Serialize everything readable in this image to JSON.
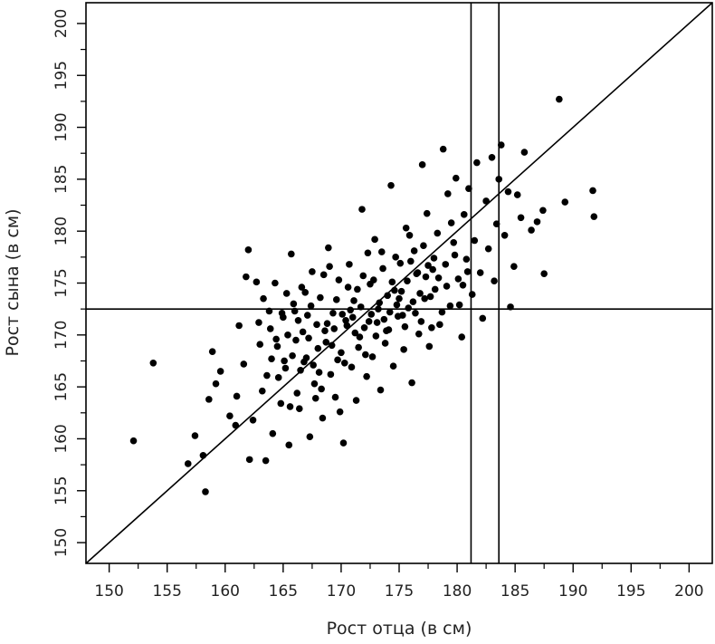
{
  "chart_data": {
    "type": "scatter",
    "xlabel": "Рост отца (в см)",
    "ylabel": "Рост сына (в см)",
    "xlim": [
      148,
      202
    ],
    "ylim": [
      148,
      202
    ],
    "x_ticks": [
      "150",
      "155",
      "160",
      "165",
      "170",
      "175",
      "180",
      "185",
      "190",
      "195",
      "200"
    ],
    "y_ticks": [
      "150",
      "155",
      "160",
      "165",
      "170",
      "175",
      "180",
      "185",
      "190",
      "195",
      "200"
    ],
    "grid": false,
    "legend": "none",
    "point_color": "#000000",
    "reference_lines": {
      "diagonal": "y = x",
      "horizontal_y": 172.5,
      "vertical_x": [
        181.2,
        183.6
      ]
    },
    "points": [
      [
        152.1,
        159.8
      ],
      [
        153.8,
        167.3
      ],
      [
        156.8,
        157.6
      ],
      [
        157.4,
        160.3
      ],
      [
        158.1,
        158.4
      ],
      [
        158.3,
        154.9
      ],
      [
        158.6,
        163.8
      ],
      [
        158.9,
        168.4
      ],
      [
        159.2,
        165.3
      ],
      [
        159.6,
        166.5
      ],
      [
        160.4,
        162.2
      ],
      [
        160.9,
        161.3
      ],
      [
        161.0,
        164.1
      ],
      [
        161.2,
        170.9
      ],
      [
        161.6,
        167.2
      ],
      [
        161.8,
        175.6
      ],
      [
        162.0,
        178.2
      ],
      [
        162.1,
        158.0
      ],
      [
        162.4,
        161.8
      ],
      [
        162.7,
        175.1
      ],
      [
        163.0,
        169.1
      ],
      [
        163.2,
        164.6
      ],
      [
        163.5,
        157.9
      ],
      [
        163.6,
        166.1
      ],
      [
        163.8,
        172.3
      ],
      [
        164.1,
        160.5
      ],
      [
        164.3,
        175.0
      ],
      [
        164.5,
        168.9
      ],
      [
        164.8,
        163.4
      ],
      [
        165.0,
        171.7
      ],
      [
        165.2,
        166.8
      ],
      [
        165.5,
        159.4
      ],
      [
        165.7,
        177.8
      ],
      [
        165.9,
        173.0
      ],
      [
        166.1,
        169.5
      ],
      [
        166.4,
        162.9
      ],
      [
        166.6,
        174.6
      ],
      [
        166.8,
        167.4
      ],
      [
        167.1,
        171.9
      ],
      [
        167.3,
        160.2
      ],
      [
        167.5,
        176.1
      ],
      [
        167.7,
        165.3
      ],
      [
        168.0,
        168.7
      ],
      [
        168.2,
        173.6
      ],
      [
        168.4,
        162.0
      ],
      [
        168.6,
        170.4
      ],
      [
        168.9,
        178.4
      ],
      [
        169.1,
        166.2
      ],
      [
        169.3,
        172.1
      ],
      [
        169.5,
        164.0
      ],
      [
        169.8,
        175.3
      ],
      [
        170.0,
        168.3
      ],
      [
        170.2,
        159.6
      ],
      [
        170.4,
        171.4
      ],
      [
        170.7,
        176.8
      ],
      [
        170.9,
        166.9
      ],
      [
        171.1,
        173.3
      ],
      [
        171.3,
        163.7
      ],
      [
        171.6,
        169.8
      ],
      [
        171.8,
        182.1
      ],
      [
        172.0,
        170.7
      ],
      [
        172.2,
        166.0
      ],
      [
        172.5,
        174.9
      ],
      [
        172.7,
        167.9
      ],
      [
        172.9,
        179.2
      ],
      [
        173.1,
        171.2
      ],
      [
        173.4,
        164.7
      ],
      [
        173.6,
        176.4
      ],
      [
        173.8,
        169.2
      ],
      [
        174.0,
        173.8
      ],
      [
        174.3,
        184.4
      ],
      [
        174.5,
        167.0
      ],
      [
        174.7,
        177.5
      ],
      [
        174.9,
        171.8
      ],
      [
        175.2,
        174.2
      ],
      [
        175.4,
        168.6
      ],
      [
        175.6,
        180.3
      ],
      [
        175.8,
        172.6
      ],
      [
        176.1,
        165.4
      ],
      [
        176.3,
        178.1
      ],
      [
        176.5,
        175.9
      ],
      [
        176.7,
        170.1
      ],
      [
        177.0,
        186.4
      ],
      [
        177.2,
        173.5
      ],
      [
        177.4,
        181.7
      ],
      [
        177.6,
        168.9
      ],
      [
        177.9,
        176.3
      ],
      [
        178.1,
        174.4
      ],
      [
        178.3,
        179.8
      ],
      [
        178.5,
        171.0
      ],
      [
        178.8,
        187.9
      ],
      [
        179.0,
        176.8
      ],
      [
        179.2,
        183.6
      ],
      [
        179.4,
        172.8
      ],
      [
        179.7,
        178.9
      ],
      [
        179.9,
        185.1
      ],
      [
        180.1,
        175.4
      ],
      [
        180.4,
        169.8
      ],
      [
        180.6,
        181.6
      ],
      [
        180.8,
        177.3
      ],
      [
        181.0,
        184.1
      ],
      [
        181.3,
        173.9
      ],
      [
        181.5,
        179.1
      ],
      [
        181.7,
        186.6
      ],
      [
        182.0,
        176.0
      ],
      [
        182.2,
        171.6
      ],
      [
        182.5,
        182.9
      ],
      [
        182.7,
        178.3
      ],
      [
        183.0,
        187.1
      ],
      [
        183.2,
        175.2
      ],
      [
        183.4,
        180.7
      ],
      [
        183.6,
        185.0
      ],
      [
        183.8,
        188.3
      ],
      [
        184.1,
        179.6
      ],
      [
        184.4,
        183.8
      ],
      [
        184.6,
        172.7
      ],
      [
        184.9,
        176.6
      ],
      [
        185.2,
        183.5
      ],
      [
        185.5,
        181.3
      ],
      [
        185.8,
        187.6
      ],
      [
        186.4,
        180.1
      ],
      [
        186.9,
        180.9
      ],
      [
        187.4,
        182.0
      ],
      [
        187.5,
        175.9
      ],
      [
        188.8,
        192.7
      ],
      [
        189.3,
        182.8
      ],
      [
        191.7,
        183.9
      ],
      [
        191.8,
        181.4
      ],
      [
        163.9,
        170.6
      ],
      [
        164.6,
        165.9
      ],
      [
        165.3,
        174.0
      ],
      [
        165.8,
        168.0
      ],
      [
        166.2,
        164.4
      ],
      [
        166.7,
        170.3
      ],
      [
        167.0,
        167.8
      ],
      [
        167.4,
        172.8
      ],
      [
        167.8,
        163.9
      ],
      [
        168.1,
        166.4
      ],
      [
        168.5,
        175.8
      ],
      [
        168.8,
        171.1
      ],
      [
        169.2,
        169.0
      ],
      [
        169.6,
        173.4
      ],
      [
        169.9,
        162.6
      ],
      [
        170.3,
        167.3
      ],
      [
        170.6,
        174.6
      ],
      [
        170.8,
        172.4
      ],
      [
        171.2,
        170.2
      ],
      [
        171.5,
        168.8
      ],
      [
        171.9,
        175.7
      ],
      [
        172.3,
        177.9
      ],
      [
        172.6,
        172.0
      ],
      [
        173.0,
        169.9
      ],
      [
        173.3,
        173.1
      ],
      [
        173.7,
        171.5
      ],
      [
        174.1,
        170.5
      ],
      [
        174.4,
        175.1
      ],
      [
        174.8,
        172.9
      ],
      [
        175.1,
        176.9
      ],
      [
        175.5,
        170.8
      ],
      [
        175.9,
        179.6
      ],
      [
        176.2,
        173.2
      ],
      [
        176.6,
        176.0
      ],
      [
        176.9,
        171.3
      ],
      [
        177.3,
        175.6
      ],
      [
        177.7,
        173.7
      ],
      [
        178.0,
        177.4
      ],
      [
        178.4,
        175.5
      ],
      [
        178.7,
        172.2
      ],
      [
        179.1,
        174.7
      ],
      [
        179.5,
        180.8
      ],
      [
        179.8,
        177.7
      ],
      [
        180.2,
        172.9
      ],
      [
        180.5,
        174.8
      ],
      [
        180.9,
        176.1
      ],
      [
        165.4,
        170.0
      ],
      [
        166.0,
        172.3
      ],
      [
        166.5,
        166.6
      ],
      [
        166.9,
        174.1
      ],
      [
        167.2,
        169.7
      ],
      [
        167.6,
        167.1
      ],
      [
        167.9,
        171.0
      ],
      [
        168.3,
        164.8
      ],
      [
        168.7,
        169.3
      ],
      [
        169.0,
        176.6
      ],
      [
        169.4,
        170.6
      ],
      [
        169.7,
        167.6
      ],
      [
        170.1,
        172.0
      ],
      [
        170.5,
        170.9
      ],
      [
        171.0,
        171.7
      ],
      [
        171.4,
        174.4
      ],
      [
        171.7,
        172.7
      ],
      [
        172.1,
        168.1
      ],
      [
        172.4,
        171.3
      ],
      [
        172.8,
        175.3
      ],
      [
        173.2,
        172.5
      ],
      [
        173.5,
        178.0
      ],
      [
        173.9,
        170.4
      ],
      [
        174.2,
        172.2
      ],
      [
        174.6,
        174.3
      ],
      [
        175.0,
        173.5
      ],
      [
        175.3,
        171.9
      ],
      [
        175.7,
        175.2
      ],
      [
        176.0,
        177.1
      ],
      [
        176.4,
        172.1
      ],
      [
        176.8,
        174.0
      ],
      [
        177.1,
        178.6
      ],
      [
        177.5,
        176.7
      ],
      [
        177.8,
        170.7
      ],
      [
        162.9,
        171.2
      ],
      [
        163.3,
        173.5
      ],
      [
        164.0,
        167.7
      ],
      [
        164.4,
        169.6
      ],
      [
        164.9,
        172.1
      ],
      [
        165.1,
        167.5
      ],
      [
        165.6,
        163.1
      ],
      [
        166.3,
        171.4
      ]
    ]
  }
}
